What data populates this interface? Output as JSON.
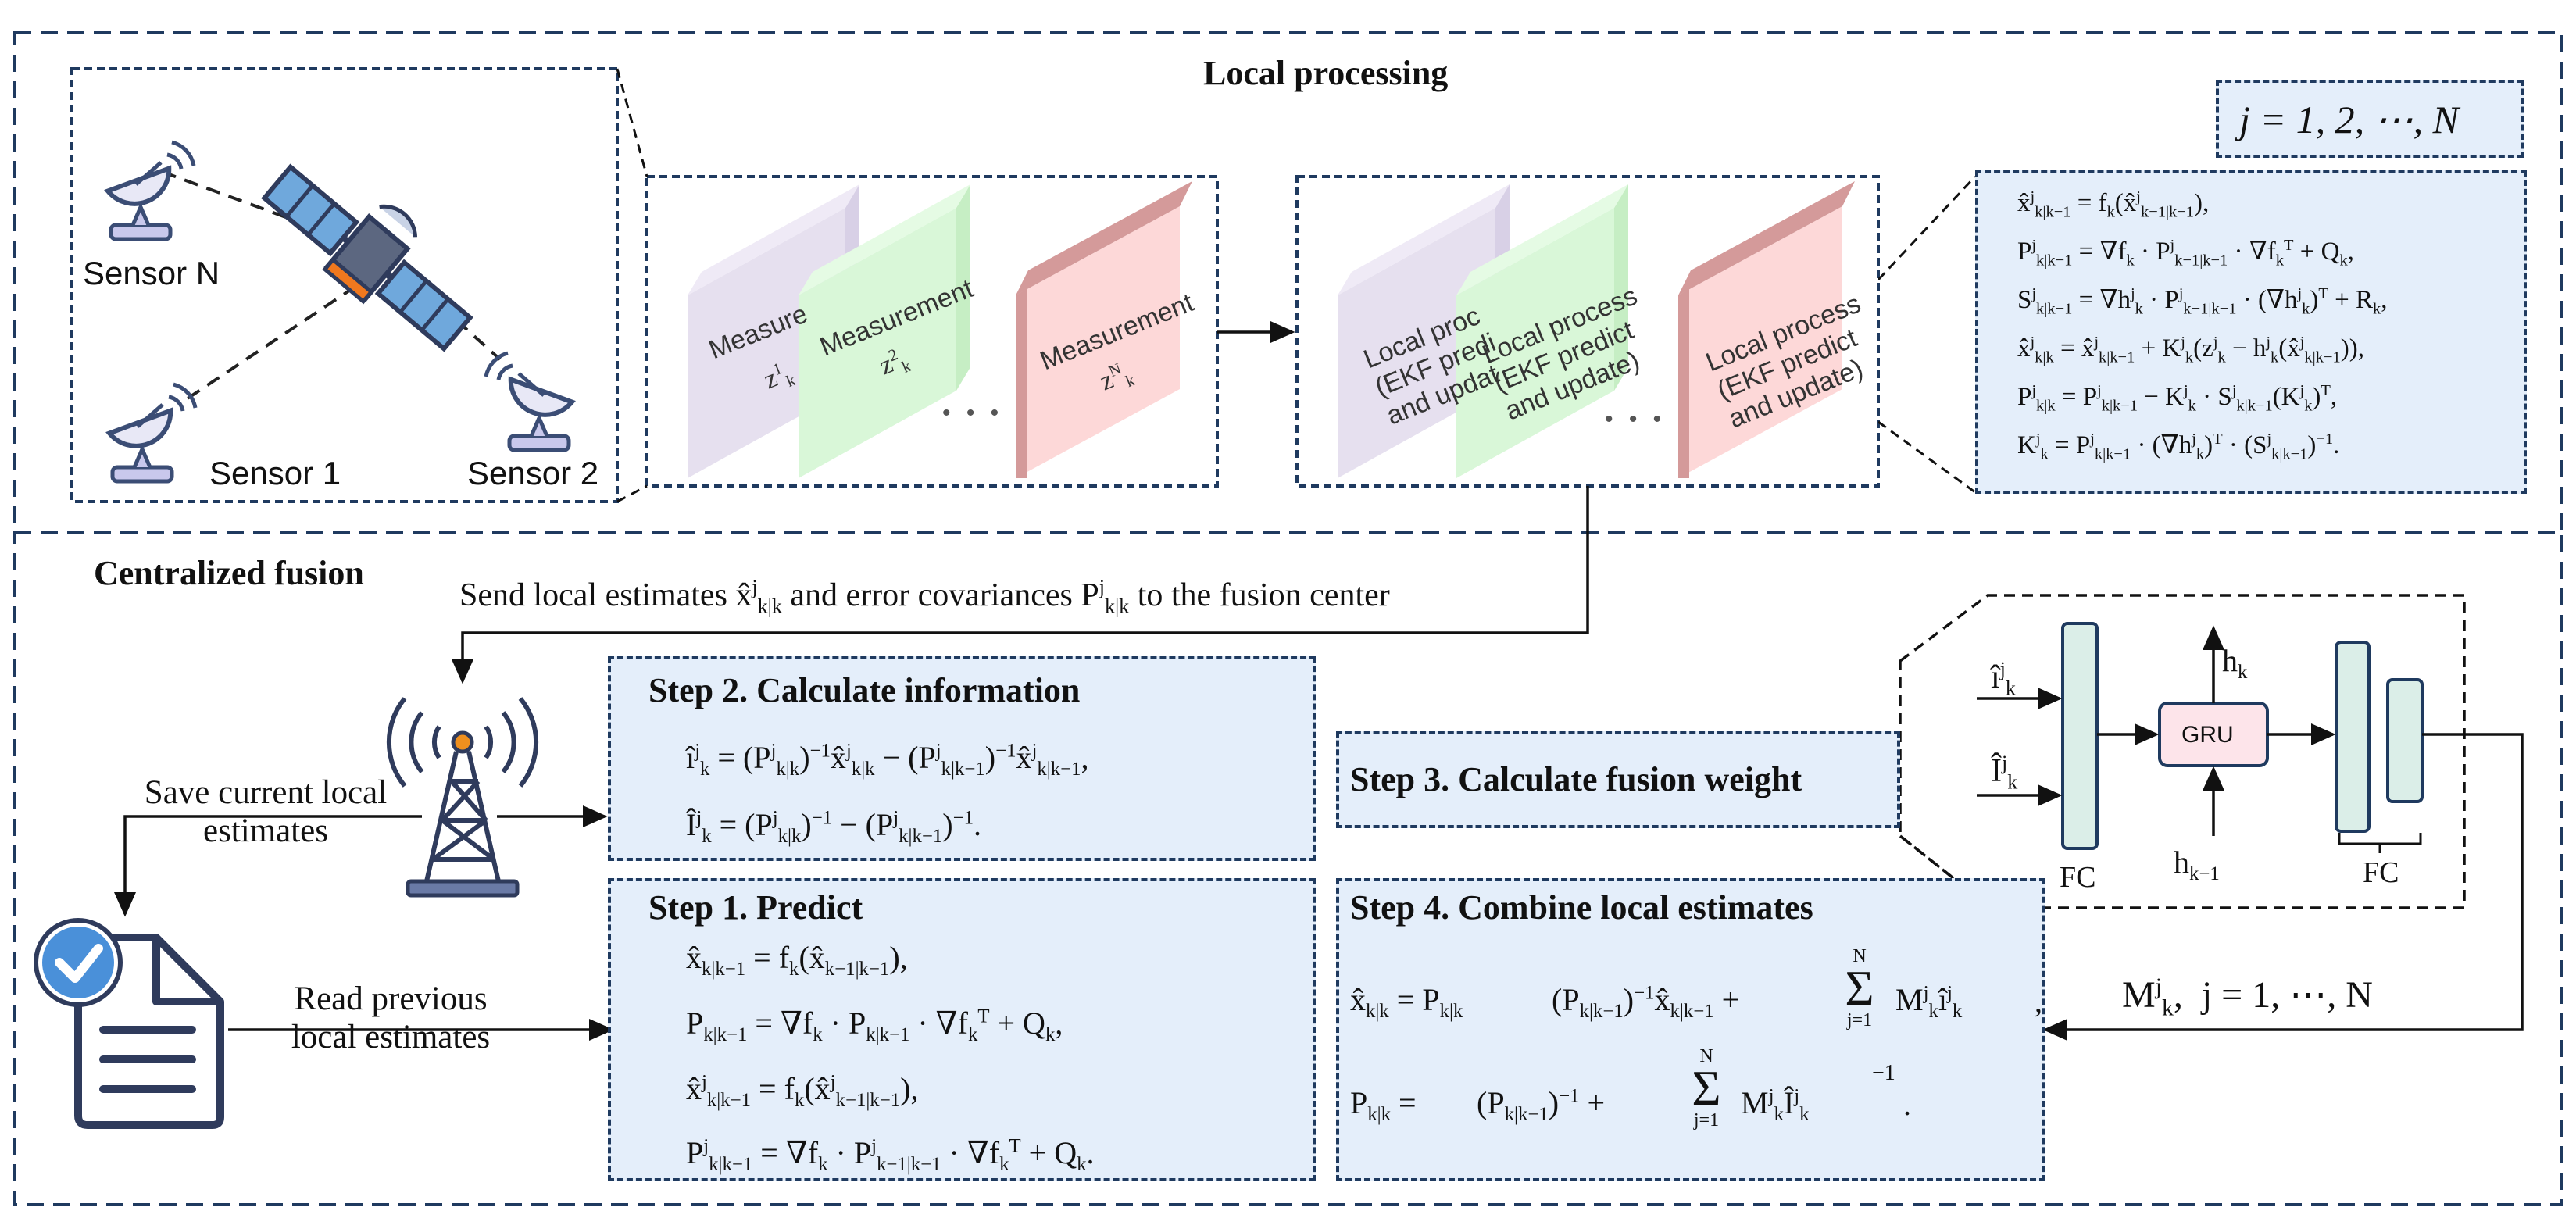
{
  "local": {
    "title": "Local processing",
    "sensors": {
      "n": "Sensor N",
      "one": "Sensor 1",
      "two": "Sensor 2"
    },
    "measurements": {
      "title": "Measurement",
      "z1": "z",
      "z1_sup": "1",
      "z2": "z",
      "z2_sup": "2",
      "zN": "z",
      "zN_sup": "N",
      "sub": "k",
      "dots": "• • •"
    },
    "processes": {
      "line1": "Local process",
      "line2": "(EKF predict",
      "line3": "and update)",
      "line1_cut": "Local proc",
      "line2_cut": "(EKF predi",
      "line3_cut": "and updat",
      "dots": "• • •"
    },
    "index_label": "j = 1, 2, ⋯, N",
    "equations": [
      "x̂ʲₖ|ₖ₋₁ = fₖ(x̂ʲₖ₋₁|ₖ₋₁),",
      "Pʲₖ|ₖ₋₁ = ∇fₖ · Pʲₖ₋₁|ₖ₋₁ · ∇fₖᵀ + Qₖ,",
      "Sʲₖ|ₖ₋₁ = ∇hʲₖ · Pʲₖ₋₁|ₖ₋₁ · (∇hʲₖ)ᵀ + Rₖ,",
      "x̂ʲₖ|ₖ = x̂ʲₖ|ₖ₋₁ + Kʲₖ(zʲₖ − hʲₖ(x̂ʲₖ|ₖ₋₁)),",
      "Pʲₖ|ₖ = Pʲₖ|ₖ₋₁ − Kʲₖ · Sʲₖ|ₖ₋₁(Kʲₖ)ᵀ,",
      "Kʲₖ = Pʲₖ|ₖ₋₁ · (∇hʲₖ)ᵀ · (Sʲₖ|ₖ₋₁)⁻¹."
    ]
  },
  "central": {
    "title": "Centralized fusion",
    "send_text": {
      "a": "Send local estimates ",
      "b": " and error covariances ",
      "c": " to the fusion center"
    },
    "save_text": [
      "Save current local",
      "estimates"
    ],
    "read_text": [
      "Read  previous",
      "local  estimates"
    ],
    "step2": {
      "title": "Step 2. Calculate information",
      "eq1": "îʲₖ = (Pʲₖ|ₖ)⁻¹ x̂ʲₖ|ₖ − (Pʲₖ|ₖ₋₁)⁻¹ x̂ʲₖ|ₖ₋₁,",
      "eq2": "Îʲₖ = (Pʲₖ|ₖ)⁻¹ − (Pʲₖ|ₖ₋₁)⁻¹."
    },
    "step1": {
      "title": "Step 1. Predict",
      "eqs": [
        "x̂ₖ|ₖ₋₁ = fₖ(x̂ₖ₋₁|ₖ₋₁),",
        "Pₖ|ₖ₋₁ = ∇fₖ · Pₖ₋₁ · ∇fₖᵀ + Qₖ,",
        "x̂ʲₖ|ₖ₋₁ = fₖ(x̂ʲₖ₋₁|ₖ₋₁),",
        "Pʲₖ|ₖ₋₁ = ∇fₖ · Pʲₖ₋₁|ₖ₋₁ · ∇fₖᵀ + Qₖ."
      ]
    },
    "step3": {
      "title": "Step 3. Calculate fusion weight"
    },
    "step4": {
      "title": "Step 4.  Combine local estimates",
      "eq1": "x̂ₖ|ₖ = Pₖ|ₖ[(Pₖ|ₖ₋₁)⁻¹ x̂ₖ|ₖ₋₁ + Σⱼ₌₁ᴺ Mʲₖ îʲₖ],",
      "eq2": "Pₖ|ₖ = [(Pₖ|ₖ₋₁)⁻¹ + Σⱼ₌₁ᴺ Mʲₖ Îʲₖ]⁻¹."
    },
    "network": {
      "gru": "GRU",
      "fc_left": "FC",
      "fc_right": "FC",
      "in_i": "îʲₖ",
      "in_I": "Îʲₖ",
      "h_out": "hₖ",
      "h_in": "hₖ₋₁"
    },
    "weights_label": "Mʲₖ, j = 1, ⋯, N"
  },
  "colors": {
    "panel_fill": "#e4eefa",
    "border": "#1f3a5f",
    "card_purple": "#e6e0ef",
    "card_green": "#d9f7d8",
    "card_red": "#fdd8d8",
    "card_red_edge": "#d49a9a",
    "fc_fill": "#dbeee8",
    "gru_fill": "#fde4ea",
    "icon_blue": "#3b4d75",
    "satellite_panel": "#6fa8dc",
    "tower_orange": "#f0901e",
    "doc_check": "#4a90d9"
  }
}
